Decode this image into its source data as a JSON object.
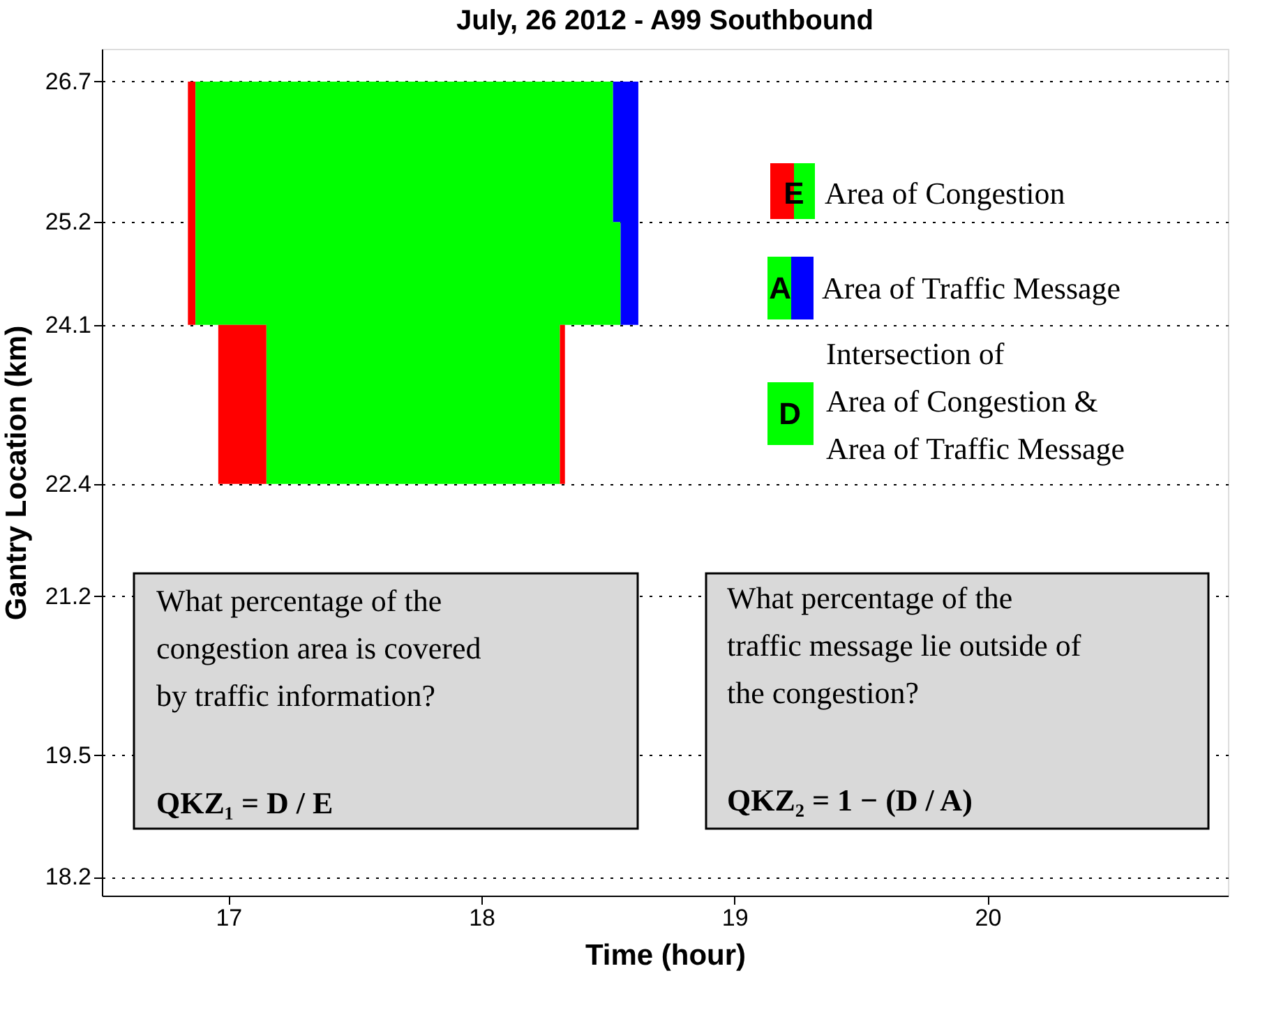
{
  "chart_data": {
    "type": "line",
    "title": "July, 26 2012 - A99 Southbound",
    "xlabel": "Time (hour)",
    "ylabel": "Gantry Location (km)",
    "xlim": [
      16.5,
      20.95
    ],
    "xticks": [
      17,
      18,
      19,
      20
    ],
    "ylim": [
      18.0,
      27.05
    ],
    "yticks": [
      18.2,
      19.5,
      21.2,
      22.4,
      24.1,
      25.2,
      26.7
    ],
    "grid": "y",
    "series": [
      {
        "color": "#ff0000",
        "x": [
          16.84,
          16.87
        ],
        "values": [
          null,
          null
        ],
        "upper": [
          26.7,
          26.7
        ],
        "lower": [
          24.1,
          24.1
        ]
      },
      {
        "color": "#00ff00",
        "x": [
          16.87,
          17.15,
          17.15,
          18.31,
          18.31,
          18.52,
          18.52,
          18.55
        ],
        "values": [
          null,
          null,
          null,
          null,
          null,
          null,
          null,
          null
        ],
        "upper": [
          26.7,
          26.7,
          26.7,
          26.7,
          26.7,
          26.7,
          25.2,
          25.2
        ],
        "lower": [
          24.1,
          24.1,
          22.4,
          22.4,
          24.1,
          24.1,
          24.1,
          24.1
        ]
      },
      {
        "color": "#0000ff",
        "x": [
          18.52,
          18.55,
          18.55,
          18.62
        ],
        "values": [
          null,
          null,
          null,
          null
        ],
        "upper": [
          26.7,
          26.7,
          26.7,
          26.7
        ],
        "lower": [
          25.2,
          25.2,
          24.1,
          24.1
        ]
      },
      {
        "color": "#ff0000",
        "x": [
          16.96,
          17.15
        ],
        "values": [
          null,
          null
        ],
        "upper": [
          24.1,
          24.1
        ],
        "lower": [
          22.4,
          22.4
        ]
      },
      {
        "color": "#ff0000",
        "x": [
          18.31,
          18.33
        ],
        "values": [
          null,
          null
        ],
        "upper": [
          24.1,
          24.1
        ],
        "lower": [
          22.4,
          22.4
        ]
      }
    ],
    "annotations": [
      "E",
      "Area of Congestion",
      "A",
      "Area of Traffic Message",
      "D",
      "Intersection of\nArea of Congestion &\nArea of Traffic Message",
      "What percentage of the\ncongestion area is covered\nby traffic information?",
      "QKZ₁ = D / E",
      "What percentage of the\ntraffic message lie outside of\nthe congestion?",
      "QKZ₂ = 1 − (D / A)"
    ]
  }
}
